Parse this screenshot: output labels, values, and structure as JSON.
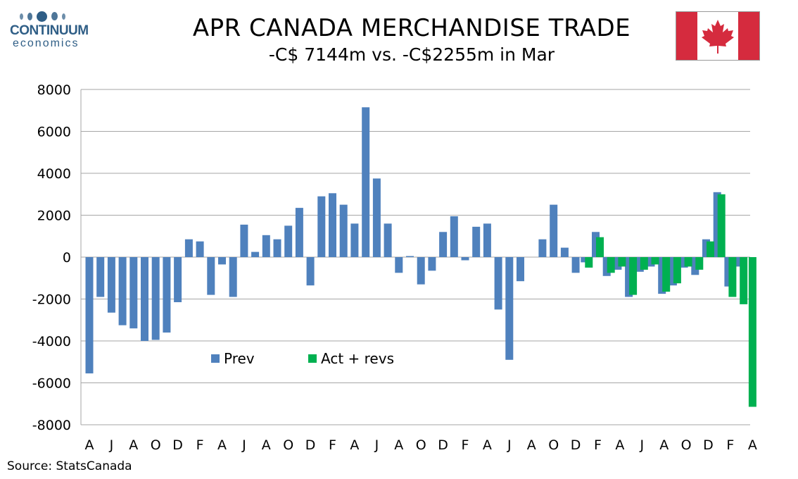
{
  "header": {
    "logo": {
      "name": "CONTINUUM",
      "sub": "economics"
    },
    "title": "APR CANADA MERCHANDISE TRADE",
    "subtitle": "-C$ 7144m vs. -C$2255m in Mar"
  },
  "footer": {
    "source": "Source: StatsCanada"
  },
  "colors": {
    "prev": "#4f81bd",
    "act": "#00b050",
    "flag_red": "#d52b3e",
    "grid": "#a6a6a6"
  },
  "icons": {
    "logo": "continuum-logo-icon",
    "flag": "canada-flag-icon"
  },
  "chart_data": {
    "type": "bar",
    "ylim": [
      -8000,
      8000
    ],
    "yticks": [
      8000,
      6000,
      4000,
      2000,
      0,
      -2000,
      -4000,
      -6000,
      -8000
    ],
    "grid": true,
    "legend_placement": "lower-left-inside",
    "x_tick_labels": [
      "A",
      "J",
      "A",
      "O",
      "D",
      "F",
      "A",
      "J",
      "A",
      "O",
      "D",
      "F",
      "A",
      "J",
      "A",
      "O",
      "D",
      "F",
      "A",
      "J",
      "A",
      "O",
      "D",
      "F",
      "A",
      "J",
      "A",
      "O",
      "D",
      "F",
      "A"
    ],
    "months": [
      "A",
      "M",
      "J",
      "J",
      "A",
      "S",
      "O",
      "N",
      "D",
      "J",
      "F",
      "M",
      "A",
      "M",
      "J",
      "J",
      "A",
      "S",
      "O",
      "N",
      "D",
      "J",
      "F",
      "M",
      "A",
      "M",
      "J",
      "J",
      "A",
      "S",
      "O",
      "N",
      "D",
      "J",
      "F",
      "M",
      "A",
      "M",
      "J",
      "J",
      "A",
      "S",
      "O",
      "N",
      "D",
      "J",
      "F",
      "M",
      "A",
      "M",
      "J",
      "J",
      "A",
      "S",
      "O",
      "N",
      "D",
      "J",
      "F",
      "M",
      "A"
    ],
    "series": [
      {
        "name": "Prev",
        "values": [
          -5550,
          -1900,
          -2650,
          -3250,
          -3400,
          -4000,
          -3950,
          -3600,
          -2150,
          850,
          750,
          -1800,
          -350,
          -1900,
          1550,
          250,
          1050,
          850,
          1500,
          2350,
          -1350,
          2900,
          3050,
          2500,
          1600,
          7150,
          3750,
          1600,
          -750,
          50,
          -1300,
          -650,
          1200,
          1950,
          -150,
          1450,
          1600,
          -2500,
          -4900,
          -1150,
          0,
          850,
          2500,
          450,
          -750,
          -250,
          1200,
          -900,
          -600,
          -1900,
          -700,
          -450,
          -1750,
          -1350,
          -500,
          -850,
          850,
          3100,
          -1400,
          -450,
          null
        ]
      },
      {
        "name": "Act + revs",
        "values": [
          null,
          null,
          null,
          null,
          null,
          null,
          null,
          null,
          null,
          null,
          null,
          null,
          null,
          null,
          null,
          null,
          null,
          null,
          null,
          null,
          null,
          null,
          null,
          null,
          null,
          null,
          null,
          null,
          null,
          null,
          null,
          null,
          null,
          null,
          null,
          null,
          null,
          null,
          null,
          null,
          null,
          null,
          null,
          null,
          null,
          -500,
          950,
          -750,
          -450,
          -1800,
          -600,
          -350,
          -1650,
          -1250,
          -450,
          -600,
          750,
          3000,
          -1900,
          -2250,
          -7144
        ]
      }
    ]
  }
}
